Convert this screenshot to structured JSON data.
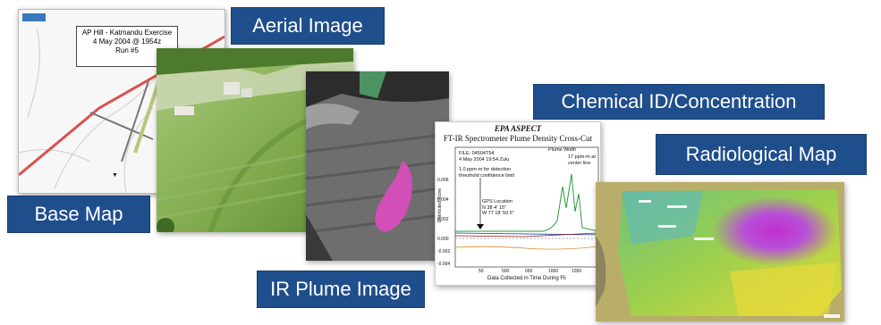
{
  "labels": {
    "base_map": "Base Map",
    "aerial_image": "Aerial Image",
    "ir_plume_image": "IR Plume Image",
    "chemical_id": "Chemical ID/Concentration",
    "radiological_map": "Radiological Map"
  },
  "base_map": {
    "title_line1": "AP Hill - Katmandu Exercise",
    "title_line2": "4 May 2004  @  1954z",
    "title_line3": "Run #5"
  },
  "ftir": {
    "header": "EPA ASPECT",
    "subtitle": "FT-IR Spectrometer Plume Density Cross-Cut",
    "file_line1": "FILE: 04504T54",
    "file_line2": "4 May 2004 19:54 Zulu",
    "threshold_line1": "1.0 ppm-m for detection",
    "threshold_line2": "threshold confidence limit",
    "plume_width": "Plume Width",
    "ppm_line1": "17 ppm-m at",
    "ppm_line2": "center line",
    "gps_line1": "GPS Location",
    "gps_line2": "N 38 4' 15\"",
    "gps_line3": "W 77 18' 50.5\"",
    "ylabel": "Distributed Score",
    "xlabel": "Data Collected in Time During Fli",
    "y_ticks": [
      "0.006",
      "0.004",
      "0.002",
      "0.000",
      "-0.002",
      "-0.004"
    ],
    "x_ticks": [
      "50",
      "500",
      "650",
      "1000",
      "1050"
    ]
  },
  "colors": {
    "label_bg": "#1f4e8c",
    "label_text": "#ffffff"
  }
}
